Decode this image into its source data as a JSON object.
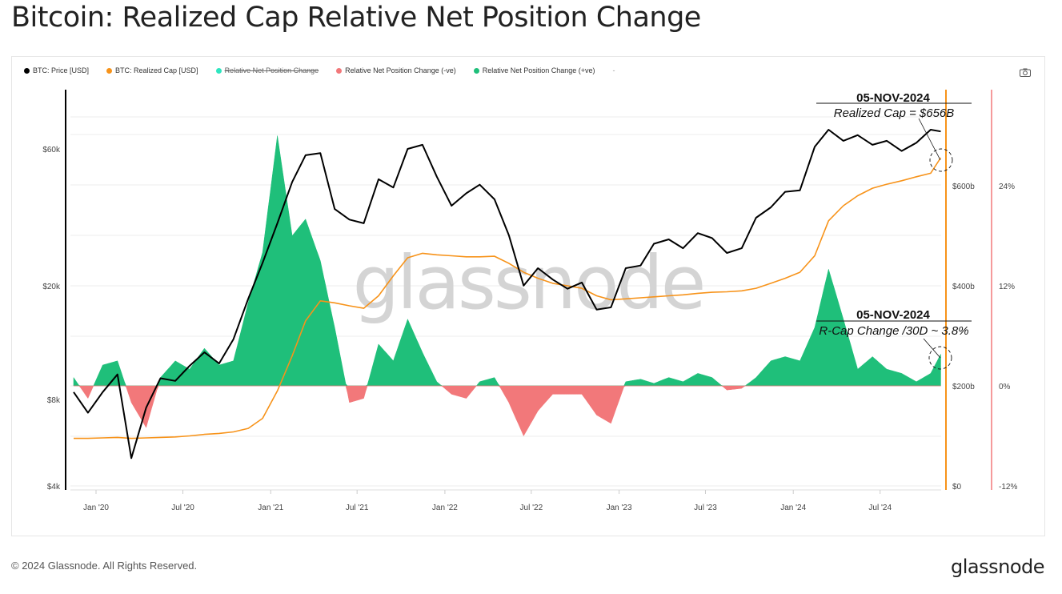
{
  "title": "Bitcoin: Realized Cap Relative Net Position Change",
  "legend": [
    {
      "label": "BTC: Price [USD]",
      "color": "#000000",
      "hidden": false
    },
    {
      "label": "BTC: Realized Cap [USD]",
      "color": "#f7931a",
      "hidden": false
    },
    {
      "label": "Relative Net Position Change",
      "color": "#2ee6c0",
      "hidden": true
    },
    {
      "label": "Relative Net Position Change (-ve)",
      "color": "#f2787a",
      "hidden": false
    },
    {
      "label": "Relative Net Position Change (+ve)",
      "color": "#1fbf7a",
      "hidden": false
    },
    {
      "label": "-",
      "color": "#999999",
      "hidden": false
    }
  ],
  "watermark": "glassnode",
  "footer": {
    "copyright": "© 2024 Glassnode. All Rights Reserved.",
    "logo": "glassnode"
  },
  "icons": {
    "screenshot": "camera-icon"
  },
  "chart_data": {
    "type": "line",
    "x_ticks": [
      "Jan '20",
      "Jul '20",
      "Jan '21",
      "Jul '21",
      "Jan '22",
      "Jul '22",
      "Jan '23",
      "Jul '23",
      "Jan '24",
      "Jul '24"
    ],
    "x_tick_dates": [
      "2020-01-01",
      "2020-07-01",
      "2021-01-01",
      "2021-07-01",
      "2022-01-01",
      "2022-07-01",
      "2023-01-01",
      "2023-07-01",
      "2024-01-01",
      "2024-07-01"
    ],
    "xlim": [
      "2019-11-15",
      "2024-11-05"
    ],
    "axes": {
      "price": {
        "scale": "log",
        "ticks": [
          "$4k",
          "$8k",
          "$20k",
          "$60k"
        ],
        "tick_values": [
          4000,
          8000,
          20000,
          60000
        ],
        "ylim": [
          4000,
          100000
        ],
        "position": "left"
      },
      "realized_cap": {
        "scale": "linear",
        "unit": "billions USD",
        "ticks": [
          "$0",
          "$200b",
          "$400b",
          "$600b"
        ],
        "tick_values": [
          0,
          200,
          400,
          600
        ],
        "ylim": [
          0,
          800
        ],
        "position": "right"
      },
      "relative_change": {
        "scale": "linear",
        "unit": "%",
        "ticks": [
          "-12%",
          "0%",
          "12%",
          "24%"
        ],
        "tick_values": [
          -12,
          0,
          12,
          24
        ],
        "ylim": [
          -12,
          36
        ],
        "position": "right"
      }
    },
    "grid": true,
    "legend_placement": "top-left",
    "dates": [
      "2019-11-15",
      "2019-12-15",
      "2020-01-15",
      "2020-02-15",
      "2020-03-15",
      "2020-04-15",
      "2020-05-15",
      "2020-06-15",
      "2020-07-15",
      "2020-08-15",
      "2020-09-15",
      "2020-10-15",
      "2020-11-15",
      "2020-12-15",
      "2021-01-15",
      "2021-02-15",
      "2021-03-15",
      "2021-04-15",
      "2021-05-15",
      "2021-06-15",
      "2021-07-15",
      "2021-08-15",
      "2021-09-15",
      "2021-10-15",
      "2021-11-15",
      "2021-12-15",
      "2022-01-15",
      "2022-02-15",
      "2022-03-15",
      "2022-04-15",
      "2022-05-15",
      "2022-06-15",
      "2022-07-15",
      "2022-08-15",
      "2022-09-15",
      "2022-10-15",
      "2022-11-15",
      "2022-12-15",
      "2023-01-15",
      "2023-02-15",
      "2023-03-15",
      "2023-04-15",
      "2023-05-15",
      "2023-06-15",
      "2023-07-15",
      "2023-08-15",
      "2023-09-15",
      "2023-10-15",
      "2023-11-15",
      "2023-12-15",
      "2024-01-15",
      "2024-02-15",
      "2024-03-15",
      "2024-04-15",
      "2024-05-15",
      "2024-06-15",
      "2024-07-15",
      "2024-08-15",
      "2024-09-15",
      "2024-10-15",
      "2024-11-05"
    ],
    "series": [
      {
        "name": "BTC: Price [USD]",
        "axis": "price",
        "color": "#000000",
        "values": [
          8500,
          7200,
          8500,
          9800,
          5000,
          7500,
          9500,
          9300,
          10500,
          11700,
          10700,
          13000,
          18000,
          24000,
          33000,
          46000,
          57000,
          58000,
          37000,
          34000,
          33000,
          47000,
          44000,
          60000,
          62000,
          48000,
          38000,
          42000,
          45000,
          40000,
          30000,
          20000,
          23000,
          21000,
          19500,
          20500,
          16500,
          16800,
          23000,
          23500,
          28000,
          29000,
          27000,
          30500,
          29300,
          26000,
          27000,
          34500,
          37500,
          42500,
          43000,
          61000,
          70000,
          64000,
          67000,
          62000,
          64000,
          59000,
          63000,
          70000,
          69000
        ]
      },
      {
        "name": "BTC: Realized Cap [USD]",
        "axis": "realized_cap",
        "color": "#f7931a",
        "values": [
          95,
          95,
          96,
          97,
          95,
          96,
          97,
          98,
          100,
          103,
          105,
          108,
          115,
          135,
          190,
          260,
          330,
          370,
          366,
          360,
          355,
          380,
          420,
          456,
          465,
          462,
          460,
          458,
          458,
          459,
          445,
          427,
          415,
          405,
          400,
          395,
          380,
          372,
          374,
          376,
          378,
          380,
          382,
          385,
          387,
          388,
          390,
          395,
          405,
          415,
          427,
          460,
          530,
          560,
          580,
          595,
          603,
          610,
          618,
          625,
          656
        ]
      },
      {
        "name": "Relative Net Position Change",
        "axis": "relative_change",
        "values": [
          1,
          -1.5,
          2.5,
          3,
          -2,
          -5,
          1,
          3,
          2,
          4.5,
          2.5,
          3,
          10,
          16,
          30,
          18,
          20,
          15,
          7,
          -2,
          -1.5,
          5,
          3,
          8,
          4,
          0.5,
          -1,
          -1.5,
          0.5,
          1,
          -2,
          -6,
          -3,
          -1,
          -1,
          -1,
          -3.5,
          -4.5,
          0.5,
          0.8,
          0.3,
          1,
          0.5,
          1.5,
          1,
          -0.5,
          -0.3,
          1,
          3,
          3.5,
          3,
          7,
          14,
          8,
          2,
          3.5,
          2,
          1.5,
          0.5,
          1.5,
          3.8
        ],
        "positive_color": "#1fbf7a",
        "negative_color": "#f2787a"
      }
    ],
    "annotations": [
      {
        "date": "05-NOV-2024",
        "text": "Realized Cap = $656B",
        "series": "BTC: Realized Cap [USD]",
        "value": 656
      },
      {
        "date": "05-NOV-2024",
        "text": "R-Cap Change /30D ~ 3.8%",
        "series": "Relative Net Position Change",
        "value": 3.8
      }
    ],
    "markers": [
      {
        "axis": "realized_cap",
        "color": "#f7931a",
        "type": "vertical-line"
      },
      {
        "axis": "relative_change",
        "color": "#f2787a",
        "type": "vertical-line"
      }
    ]
  }
}
